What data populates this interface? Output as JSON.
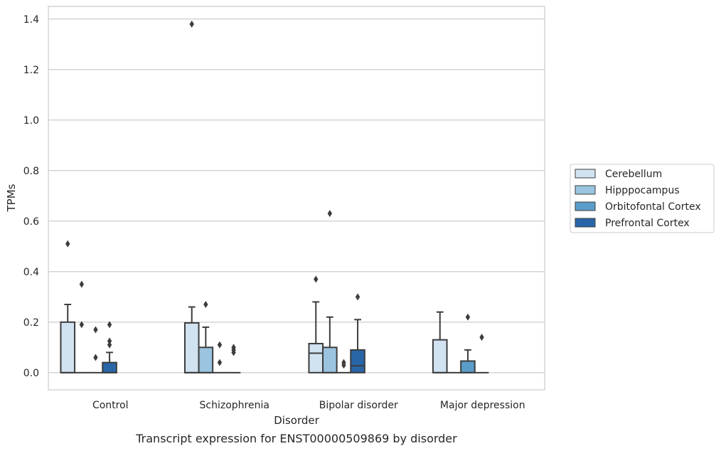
{
  "chart_data": {
    "type": "box",
    "xlabel": "Disorder",
    "ylabel": "TPMs",
    "caption": "Transcript expression for ENST00000509869 by disorder",
    "ylim": [
      -0.068,
      1.45
    ],
    "yticks": [
      "0.0",
      "0.2",
      "0.4",
      "0.6",
      "0.8",
      "1.0",
      "1.2",
      "1.4"
    ],
    "ytick_values": [
      0.0,
      0.2,
      0.4,
      0.6,
      0.8,
      1.0,
      1.2,
      1.4
    ],
    "grid": "horizontal",
    "legend_placement": "right",
    "categories": [
      "Control",
      "Schizophrenia",
      "Bipolar disorder",
      "Major depression"
    ],
    "series": [
      {
        "name": "Cerebellum",
        "color": "#d1e2f1",
        "boxes": [
          {
            "q1": 0.0,
            "median": 0.0,
            "q3": 0.2,
            "whisker_low": 0.0,
            "whisker_high": 0.27,
            "outliers": [
              0.51
            ]
          },
          {
            "q1": 0.0,
            "median": 0.0,
            "q3": 0.197,
            "whisker_low": 0.0,
            "whisker_high": 0.26,
            "outliers": [
              1.38
            ]
          },
          {
            "q1": 0.0,
            "median": 0.077,
            "q3": 0.115,
            "whisker_low": 0.0,
            "whisker_high": 0.28,
            "outliers": [
              0.37
            ]
          },
          {
            "q1": 0.0,
            "median": 0.0,
            "q3": 0.13,
            "whisker_low": 0.0,
            "whisker_high": 0.24,
            "outliers": []
          }
        ]
      },
      {
        "name": "Hipppocampus",
        "color": "#9ac4df",
        "boxes": [
          {
            "q1": 0.0,
            "median": 0.0,
            "q3": 0.0,
            "whisker_low": 0.0,
            "whisker_high": 0.0,
            "outliers": [
              0.35,
              0.19
            ]
          },
          {
            "q1": 0.0,
            "median": 0.0,
            "q3": 0.1,
            "whisker_low": 0.0,
            "whisker_high": 0.18,
            "outliers": [
              0.27
            ]
          },
          {
            "q1": 0.0,
            "median": 0.0,
            "q3": 0.1,
            "whisker_low": 0.0,
            "whisker_high": 0.22,
            "outliers": [
              0.63
            ]
          },
          {
            "q1": 0.0,
            "median": 0.0,
            "q3": 0.0,
            "whisker_low": 0.0,
            "whisker_high": 0.0,
            "outliers": []
          }
        ]
      },
      {
        "name": "Orbitofontal Cortex",
        "color": "#5a9dc8",
        "boxes": [
          {
            "q1": 0.0,
            "median": 0.0,
            "q3": 0.0,
            "whisker_low": 0.0,
            "whisker_high": 0.0,
            "outliers": [
              0.17,
              0.06
            ]
          },
          {
            "q1": 0.0,
            "median": 0.0,
            "q3": 0.0,
            "whisker_low": 0.0,
            "whisker_high": 0.0,
            "outliers": [
              0.11,
              0.04
            ]
          },
          {
            "q1": 0.0,
            "median": 0.0,
            "q3": 0.0,
            "whisker_low": 0.0,
            "whisker_high": 0.0,
            "outliers": [
              0.04,
              0.03
            ]
          },
          {
            "q1": 0.0,
            "median": 0.0,
            "q3": 0.046,
            "whisker_low": 0.0,
            "whisker_high": 0.09,
            "outliers": [
              0.22
            ]
          }
        ]
      },
      {
        "name": "Prefrontal Cortex",
        "color": "#2866a8",
        "boxes": [
          {
            "q1": 0.0,
            "median": 0.0,
            "q3": 0.04,
            "whisker_low": 0.0,
            "whisker_high": 0.08,
            "outliers": [
              0.19,
              0.125,
              0.11
            ]
          },
          {
            "q1": 0.0,
            "median": 0.0,
            "q3": 0.0,
            "whisker_low": 0.0,
            "whisker_high": 0.0,
            "outliers": [
              0.1,
              0.09,
              0.08
            ]
          },
          {
            "q1": 0.0,
            "median": 0.027,
            "q3": 0.09,
            "whisker_low": 0.0,
            "whisker_high": 0.21,
            "outliers": [
              0.3
            ]
          },
          {
            "q1": 0.0,
            "median": 0.0,
            "q3": 0.0,
            "whisker_low": 0.0,
            "whisker_high": 0.0,
            "outliers": [
              0.14
            ]
          }
        ]
      }
    ]
  }
}
